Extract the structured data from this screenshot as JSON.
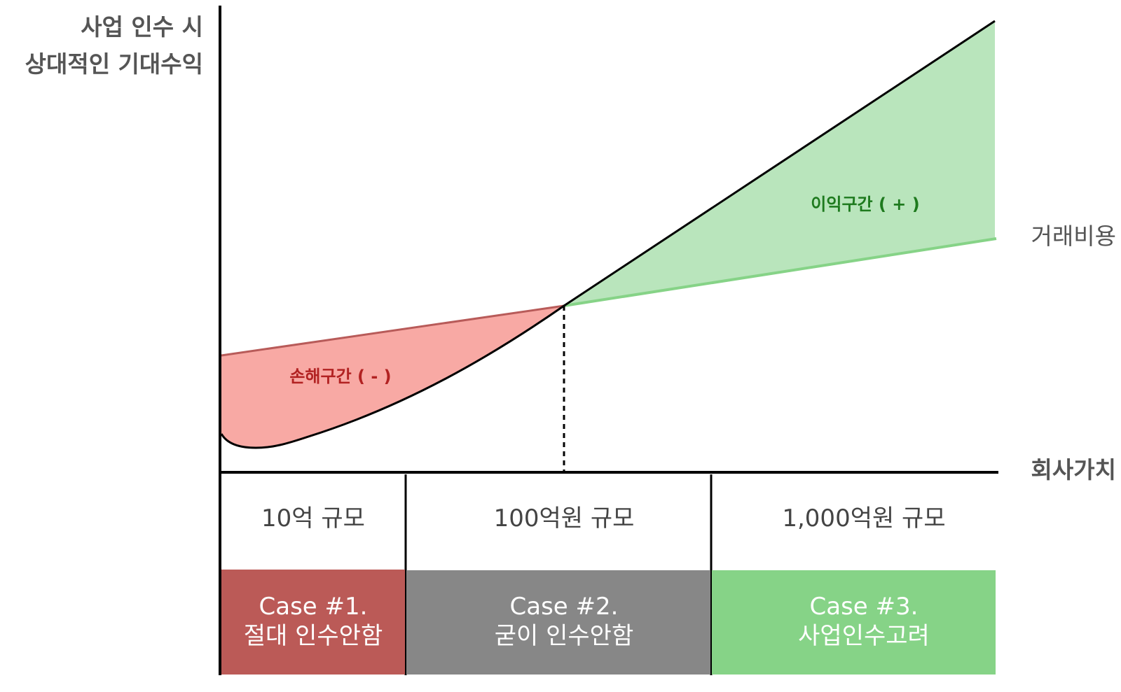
{
  "y_axis_label": [
    "사업 인수 시",
    "상대적인 기대수익"
  ],
  "x_axis_label": "회사가치",
  "cost_line_label": "거래비용",
  "loss_zone_label": "손해구간 ( - )",
  "profit_zone_label": "이익구간 ( + )",
  "scales": [
    {
      "label": "10억 규모"
    },
    {
      "label": "100억원 규모"
    },
    {
      "label": "1,000억원 규모"
    }
  ],
  "cases": [
    {
      "title": "Case #1.",
      "desc": "절대 인수안함",
      "color": "#bb5a57"
    },
    {
      "title": "Case #2.",
      "desc": "굳이 인수안함",
      "color": "#878787"
    },
    {
      "title": "Case #3.",
      "desc": "사업인수고려",
      "color": "#86d387"
    }
  ],
  "colors": {
    "loss_fill": "#f8a9a4",
    "loss_line": "#b85b59",
    "profit_fill": "#b9e5bc",
    "profit_line": "#86d387",
    "loss_text": "#b22222",
    "profit_text": "#1e7a1e",
    "axis": "#000000"
  }
}
